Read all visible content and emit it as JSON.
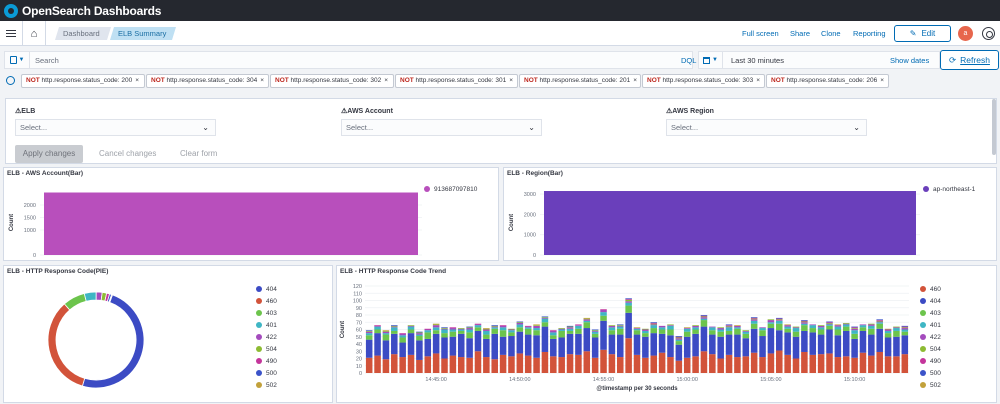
{
  "app": {
    "brand": "OpenSearch Dashboards"
  },
  "nav": {
    "breadcrumbs": [
      "Dashboard",
      "ELB Summary"
    ],
    "links": [
      "Full screen",
      "Share",
      "Clone",
      "Reporting"
    ],
    "edit_label": "Edit",
    "avatar_initial": "a"
  },
  "query": {
    "placeholder": "Search",
    "language": "DQL",
    "time_range": "Last 30 minutes",
    "show_dates": "Show dates",
    "refresh_label": "Refresh"
  },
  "filters": [
    {
      "not": "NOT",
      "text": "http.response.status_code: 200"
    },
    {
      "not": "NOT",
      "text": "http.response.status_code: 304"
    },
    {
      "not": "NOT",
      "text": "http.response.status_code: 302"
    },
    {
      "not": "NOT",
      "text": "http.response.status_code: 301"
    },
    {
      "not": "NOT",
      "text": "http.response.status_code: 201"
    },
    {
      "not": "NOT",
      "text": "http.response.status_code: 303"
    },
    {
      "not": "NOT",
      "text": "http.response.status_code: 206"
    }
  ],
  "controls": {
    "fields": [
      {
        "label": "ELB",
        "placeholder": "Select..."
      },
      {
        "label": "AWS Account",
        "placeholder": "Select..."
      },
      {
        "label": "AWS Region",
        "placeholder": "Select..."
      }
    ],
    "apply": "Apply changes",
    "cancel": "Cancel changes",
    "clear": "Clear form"
  },
  "panels": {
    "account": {
      "title": "ELB - AWS Account(Bar)",
      "ylabel": "Count"
    },
    "region": {
      "title": "ELB - Region(Bar)",
      "ylabel": "Count"
    },
    "pie": {
      "title": "ELB - HTTP Response Code(PIE)"
    },
    "trend": {
      "title": "ELB - HTTP Response Code Trend",
      "ylabel": "Count",
      "xlabel": "@timestamp per 30 seconds"
    }
  },
  "colors": {
    "account_bar": "#b84fbc",
    "region_bar": "#6a3fbb",
    "link": "#006bb4",
    "not_label": "#bd271e"
  },
  "chart_data": [
    {
      "type": "bar",
      "title": "ELB - AWS Account(Bar)",
      "ylabel": "Count",
      "ylim": [
        0,
        2600
      ],
      "yticks": [
        0,
        1000,
        1500,
        2000
      ],
      "categories": [
        "913687097810"
      ],
      "series": [
        {
          "name": "913687097810",
          "color": "#b84fbc",
          "values": [
            2500
          ]
        }
      ],
      "legend": "right"
    },
    {
      "type": "bar",
      "title": "ELB - Region(Bar)",
      "ylabel": "Count",
      "ylim": [
        0,
        3200
      ],
      "yticks": [
        0,
        1000,
        2000,
        3000
      ],
      "categories": [
        "ap-northeast-1"
      ],
      "series": [
        {
          "name": "ap-northeast-1",
          "color": "#6a3fbb",
          "values": [
            3150
          ]
        }
      ],
      "legend": "right"
    },
    {
      "type": "pie",
      "title": "ELB - HTTP Response Code(PIE)",
      "donut": true,
      "slices": [
        {
          "label": "404",
          "value": 49,
          "color": "#3c4bc4"
        },
        {
          "label": "460",
          "value": 34,
          "color": "#d2533a"
        },
        {
          "label": "403",
          "value": 7.5,
          "color": "#6cc44c"
        },
        {
          "label": "401",
          "value": 4,
          "color": "#3fb6c4"
        },
        {
          "label": "422",
          "value": 2,
          "color": "#a44bbd"
        },
        {
          "label": "504",
          "value": 1.5,
          "color": "#8dbb33"
        },
        {
          "label": "490",
          "value": 1,
          "color": "#c4359b"
        },
        {
          "label": "500",
          "value": 0.7,
          "color": "#3b53c9"
        },
        {
          "label": "502",
          "value": 0.3,
          "color": "#c2a13b"
        }
      ],
      "legend": "right"
    },
    {
      "type": "bar",
      "stacked": true,
      "title": "ELB - HTTP Response Code Trend",
      "xlabel": "@timestamp per 30 seconds",
      "ylabel": "Count",
      "ylim": [
        0,
        120
      ],
      "yticks": [
        0,
        10,
        20,
        30,
        40,
        50,
        60,
        70,
        80,
        90,
        100,
        110,
        120
      ],
      "xticks": [
        "14:45:00",
        "14:50:00",
        "14:55:00",
        "15:00:00",
        "15:05:00",
        "15:10:00"
      ],
      "xtick_bins": [
        8,
        18,
        28,
        38,
        48,
        58
      ],
      "series": [
        {
          "name": "460",
          "color": "#d2533a",
          "values": [
            21,
            24,
            19,
            26,
            22,
            25,
            18,
            23,
            27,
            20,
            24,
            22,
            21,
            30,
            22,
            19,
            25,
            23,
            27,
            24,
            21,
            29,
            23,
            22,
            26,
            25,
            30,
            21,
            32,
            26,
            22,
            48,
            25,
            21,
            24,
            28,
            22,
            17,
            21,
            23,
            30,
            26,
            20,
            25,
            22,
            23,
            28,
            22,
            27,
            31,
            25,
            20,
            29,
            25,
            26,
            27,
            22,
            23,
            21,
            28,
            24,
            29,
            23,
            23,
            26
          ]
        },
        {
          "name": "404",
          "color": "#3c4bc4",
          "values": [
            25,
            31,
            26,
            28,
            20,
            30,
            27,
            24,
            27,
            29,
            26,
            32,
            27,
            28,
            25,
            35,
            25,
            28,
            30,
            29,
            31,
            35,
            24,
            27,
            28,
            29,
            32,
            28,
            40,
            27,
            31,
            35,
            28,
            29,
            31,
            26,
            30,
            22,
            29,
            31,
            34,
            27,
            30,
            28,
            31,
            25,
            33,
            29,
            35,
            28,
            31,
            30,
            29,
            31,
            27,
            33,
            30,
            35,
            26,
            30,
            29,
            32,
            26,
            27,
            26
          ]
        },
        {
          "name": "403",
          "color": "#6cc44c",
          "values": [
            6,
            5,
            8,
            4,
            7,
            5,
            6,
            9,
            5,
            6,
            7,
            4,
            8,
            5,
            6,
            7,
            9,
            5,
            6,
            8,
            7,
            6,
            5,
            9,
            4,
            7,
            8,
            5,
            7,
            6,
            8,
            10,
            6,
            5,
            7,
            6,
            8,
            5,
            7,
            6,
            9,
            6,
            7,
            5,
            8,
            6,
            7,
            8,
            6,
            9,
            5,
            7,
            8,
            6,
            7,
            5,
            8,
            6,
            7,
            5,
            8,
            7,
            6,
            8,
            5
          ]
        },
        {
          "name": "401",
          "color": "#3fb6c4",
          "values": [
            3,
            4,
            2,
            5,
            3,
            4,
            2,
            3,
            4,
            5,
            3,
            2,
            4,
            3,
            5,
            2,
            4,
            3,
            4,
            2,
            3,
            5,
            4,
            2,
            3,
            4,
            2,
            3,
            5,
            4,
            3,
            4,
            2,
            3,
            4,
            3,
            5,
            2,
            4,
            3,
            2,
            4,
            3,
            5,
            2,
            3,
            4,
            3,
            2,
            4,
            3,
            5,
            2,
            4,
            3,
            2,
            4,
            3,
            5,
            3,
            4,
            2,
            3,
            4,
            3
          ]
        },
        {
          "name": "422",
          "color": "#a44bbd",
          "values": [
            2,
            1,
            2,
            1,
            2,
            1,
            2,
            1,
            3,
            1,
            2,
            1,
            2,
            1,
            2,
            1,
            2,
            1,
            2,
            1,
            3,
            1,
            2,
            1,
            2,
            1,
            2,
            1,
            3,
            2,
            1,
            2,
            1,
            2,
            1,
            2,
            1,
            2,
            1,
            2,
            2,
            1,
            2,
            1,
            2,
            1,
            2,
            1,
            3,
            1,
            2,
            1,
            2,
            1,
            2,
            1,
            2,
            1,
            2,
            1,
            2,
            1,
            2,
            1,
            2
          ]
        },
        {
          "name": "504",
          "color": "#8dbb33",
          "values": [
            1,
            0,
            1,
            1,
            0,
            1,
            1,
            0,
            1,
            1,
            0,
            1,
            1,
            0,
            1,
            1,
            0,
            1,
            1,
            0,
            1,
            1,
            0,
            1,
            1,
            0,
            1,
            1,
            0,
            1,
            1,
            2,
            0,
            1,
            1,
            0,
            1,
            1,
            0,
            1,
            1,
            0,
            1,
            1,
            0,
            1,
            1,
            0,
            1,
            1,
            0,
            1,
            1,
            0,
            1,
            1,
            0,
            1,
            1,
            0,
            1,
            1,
            0,
            1,
            1
          ]
        },
        {
          "name": "490",
          "color": "#c4359b",
          "values": [
            0,
            1,
            0,
            0,
            1,
            0,
            0,
            1,
            0,
            0,
            1,
            0,
            0,
            1,
            0,
            0,
            1,
            0,
            0,
            1,
            0,
            0,
            1,
            0,
            0,
            1,
            0,
            0,
            1,
            0,
            0,
            1,
            0,
            0,
            1,
            0,
            0,
            1,
            0,
            0,
            1,
            0,
            0,
            1,
            0,
            0,
            1,
            0,
            0,
            1,
            0,
            0,
            1,
            0,
            0,
            1,
            0,
            0,
            1,
            0,
            0,
            1,
            0,
            0,
            1
          ]
        },
        {
          "name": "500",
          "color": "#3b53c9",
          "values": [
            1,
            0,
            0,
            1,
            0,
            0,
            1,
            0,
            0,
            1,
            0,
            0,
            1,
            0,
            0,
            1,
            0,
            0,
            1,
            0,
            0,
            1,
            0,
            0,
            1,
            0,
            0,
            1,
            0,
            0,
            1,
            1,
            0,
            0,
            1,
            0,
            0,
            1,
            0,
            0,
            1,
            0,
            0,
            1,
            0,
            0,
            1,
            0,
            0,
            1,
            0,
            0,
            1,
            0,
            0,
            1,
            0,
            0,
            1,
            0,
            0,
            1,
            0,
            0,
            1
          ]
        },
        {
          "name": "502",
          "color": "#c2a13b",
          "values": [
            0,
            0,
            1,
            0,
            0,
            0,
            0,
            0,
            1,
            0,
            0,
            0,
            0,
            0,
            1,
            0,
            0,
            0,
            0,
            0,
            1,
            0,
            0,
            0,
            0,
            0,
            1,
            0,
            0,
            0,
            0,
            0,
            1,
            0,
            0,
            0,
            0,
            0,
            1,
            0,
            0,
            0,
            0,
            0,
            1,
            0,
            0,
            0,
            0,
            0,
            1,
            0,
            0,
            0,
            0,
            0,
            1,
            0,
            0,
            0,
            0,
            0,
            1,
            0,
            0
          ]
        }
      ],
      "legend": "right"
    }
  ]
}
